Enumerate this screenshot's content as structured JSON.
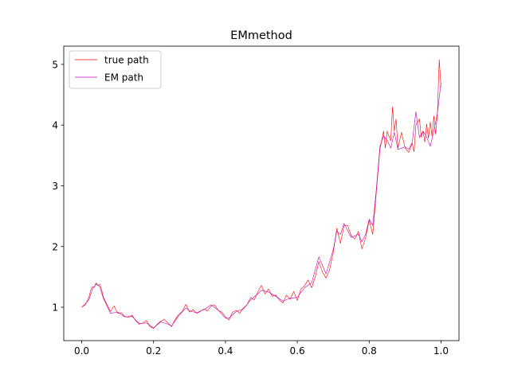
{
  "chart_data": {
    "type": "line",
    "title": "EMmethod",
    "xlabel": "",
    "ylabel": "",
    "xlim": [
      -0.05,
      1.05
    ],
    "ylim": [
      0.45,
      5.3
    ],
    "x_ticks": [
      0.0,
      0.2,
      0.4,
      0.6,
      0.8,
      1.0
    ],
    "x_tick_labels": [
      "0.0",
      "0.2",
      "0.4",
      "0.6",
      "0.8",
      "1.0"
    ],
    "y_ticks": [
      1,
      2,
      3,
      4,
      5
    ],
    "y_tick_labels": [
      "1",
      "2",
      "3",
      "4",
      "5"
    ],
    "grid": false,
    "legend_position": "upper-left",
    "series": [
      {
        "name": "true path",
        "color": "#ff0000",
        "points": [
          [
            0.0,
            1.0
          ],
          [
            0.01,
            1.04
          ],
          [
            0.02,
            1.16
          ],
          [
            0.025,
            1.28
          ],
          [
            0.03,
            1.34
          ],
          [
            0.035,
            1.33
          ],
          [
            0.04,
            1.4
          ],
          [
            0.045,
            1.36
          ],
          [
            0.05,
            1.38
          ],
          [
            0.055,
            1.3
          ],
          [
            0.06,
            1.17
          ],
          [
            0.07,
            1.05
          ],
          [
            0.08,
            0.93
          ],
          [
            0.09,
            1.02
          ],
          [
            0.1,
            0.9
          ],
          [
            0.11,
            0.91
          ],
          [
            0.12,
            0.85
          ],
          [
            0.13,
            0.83
          ],
          [
            0.14,
            0.87
          ],
          [
            0.15,
            0.78
          ],
          [
            0.16,
            0.72
          ],
          [
            0.17,
            0.74
          ],
          [
            0.18,
            0.78
          ],
          [
            0.19,
            0.68
          ],
          [
            0.2,
            0.65
          ],
          [
            0.21,
            0.72
          ],
          [
            0.22,
            0.77
          ],
          [
            0.23,
            0.8
          ],
          [
            0.24,
            0.74
          ],
          [
            0.25,
            0.68
          ],
          [
            0.26,
            0.8
          ],
          [
            0.27,
            0.88
          ],
          [
            0.28,
            0.93
          ],
          [
            0.29,
            1.05
          ],
          [
            0.3,
            0.92
          ],
          [
            0.31,
            0.96
          ],
          [
            0.32,
            0.9
          ],
          [
            0.33,
            0.93
          ],
          [
            0.34,
            0.97
          ],
          [
            0.35,
            0.94
          ],
          [
            0.36,
            1.02
          ],
          [
            0.37,
            1.04
          ],
          [
            0.38,
            0.95
          ],
          [
            0.39,
            0.92
          ],
          [
            0.4,
            0.84
          ],
          [
            0.41,
            0.79
          ],
          [
            0.42,
            0.92
          ],
          [
            0.43,
            0.95
          ],
          [
            0.44,
            0.9
          ],
          [
            0.45,
            0.99
          ],
          [
            0.46,
            1.04
          ],
          [
            0.47,
            1.16
          ],
          [
            0.48,
            1.12
          ],
          [
            0.49,
            1.25
          ],
          [
            0.5,
            1.36
          ],
          [
            0.51,
            1.22
          ],
          [
            0.52,
            1.3
          ],
          [
            0.53,
            1.18
          ],
          [
            0.54,
            1.2
          ],
          [
            0.55,
            1.12
          ],
          [
            0.56,
            1.07
          ],
          [
            0.57,
            1.2
          ],
          [
            0.58,
            1.13
          ],
          [
            0.59,
            1.26
          ],
          [
            0.6,
            1.11
          ],
          [
            0.61,
            1.3
          ],
          [
            0.62,
            1.35
          ],
          [
            0.63,
            1.45
          ],
          [
            0.64,
            1.32
          ],
          [
            0.65,
            1.5
          ],
          [
            0.66,
            1.75
          ],
          [
            0.67,
            1.58
          ],
          [
            0.68,
            1.48
          ],
          [
            0.69,
            1.62
          ],
          [
            0.7,
            1.9
          ],
          [
            0.71,
            2.3
          ],
          [
            0.72,
            2.05
          ],
          [
            0.73,
            2.34
          ],
          [
            0.74,
            2.35
          ],
          [
            0.75,
            2.18
          ],
          [
            0.76,
            2.12
          ],
          [
            0.77,
            2.25
          ],
          [
            0.78,
            1.96
          ],
          [
            0.79,
            2.14
          ],
          [
            0.8,
            2.43
          ],
          [
            0.81,
            2.2
          ],
          [
            0.82,
            2.9
          ],
          [
            0.83,
            3.6
          ],
          [
            0.84,
            3.9
          ],
          [
            0.845,
            3.62
          ],
          [
            0.85,
            3.9
          ],
          [
            0.86,
            3.74
          ],
          [
            0.865,
            4.3
          ],
          [
            0.87,
            3.9
          ],
          [
            0.875,
            4.1
          ],
          [
            0.88,
            3.62
          ],
          [
            0.89,
            3.88
          ],
          [
            0.9,
            3.62
          ],
          [
            0.91,
            3.55
          ],
          [
            0.92,
            3.7
          ],
          [
            0.925,
            3.56
          ],
          [
            0.93,
            4.0
          ],
          [
            0.94,
            4.1
          ],
          [
            0.945,
            3.8
          ],
          [
            0.95,
            3.9
          ],
          [
            0.955,
            3.72
          ],
          [
            0.96,
            4.02
          ],
          [
            0.965,
            3.78
          ],
          [
            0.97,
            4.05
          ],
          [
            0.975,
            3.82
          ],
          [
            0.98,
            4.15
          ],
          [
            0.985,
            3.85
          ],
          [
            0.99,
            4.2
          ],
          [
            0.995,
            5.08
          ],
          [
            1.0,
            4.62
          ]
        ]
      },
      {
        "name": "EM path",
        "color": "#bf00bf",
        "points": [
          [
            0.0,
            1.0
          ],
          [
            0.02,
            1.12
          ],
          [
            0.03,
            1.3
          ],
          [
            0.04,
            1.38
          ],
          [
            0.05,
            1.34
          ],
          [
            0.06,
            1.15
          ],
          [
            0.08,
            0.9
          ],
          [
            0.1,
            0.92
          ],
          [
            0.12,
            0.84
          ],
          [
            0.14,
            0.85
          ],
          [
            0.16,
            0.73
          ],
          [
            0.18,
            0.74
          ],
          [
            0.2,
            0.66
          ],
          [
            0.22,
            0.76
          ],
          [
            0.24,
            0.72
          ],
          [
            0.25,
            0.69
          ],
          [
            0.27,
            0.86
          ],
          [
            0.29,
            0.99
          ],
          [
            0.3,
            0.94
          ],
          [
            0.32,
            0.91
          ],
          [
            0.34,
            0.96
          ],
          [
            0.36,
            1.04
          ],
          [
            0.38,
            0.95
          ],
          [
            0.4,
            0.82
          ],
          [
            0.41,
            0.82
          ],
          [
            0.43,
            0.93
          ],
          [
            0.45,
            0.97
          ],
          [
            0.47,
            1.12
          ],
          [
            0.49,
            1.22
          ],
          [
            0.5,
            1.28
          ],
          [
            0.52,
            1.25
          ],
          [
            0.54,
            1.18
          ],
          [
            0.56,
            1.1
          ],
          [
            0.58,
            1.15
          ],
          [
            0.6,
            1.16
          ],
          [
            0.62,
            1.32
          ],
          [
            0.64,
            1.4
          ],
          [
            0.66,
            1.83
          ],
          [
            0.68,
            1.55
          ],
          [
            0.7,
            1.95
          ],
          [
            0.71,
            2.25
          ],
          [
            0.72,
            2.2
          ],
          [
            0.73,
            2.38
          ],
          [
            0.75,
            2.15
          ],
          [
            0.77,
            2.2
          ],
          [
            0.78,
            2.08
          ],
          [
            0.79,
            2.2
          ],
          [
            0.8,
            2.45
          ],
          [
            0.81,
            2.35
          ],
          [
            0.82,
            2.95
          ],
          [
            0.83,
            3.65
          ],
          [
            0.84,
            3.82
          ],
          [
            0.85,
            3.75
          ],
          [
            0.86,
            3.62
          ],
          [
            0.87,
            3.88
          ],
          [
            0.88,
            3.6
          ],
          [
            0.89,
            3.62
          ],
          [
            0.9,
            3.64
          ],
          [
            0.91,
            3.6
          ],
          [
            0.92,
            3.72
          ],
          [
            0.93,
            4.22
          ],
          [
            0.94,
            3.8
          ],
          [
            0.95,
            3.9
          ],
          [
            0.96,
            3.8
          ],
          [
            0.97,
            3.65
          ],
          [
            0.98,
            3.9
          ],
          [
            0.99,
            4.2
          ],
          [
            1.0,
            4.7
          ]
        ]
      }
    ]
  }
}
